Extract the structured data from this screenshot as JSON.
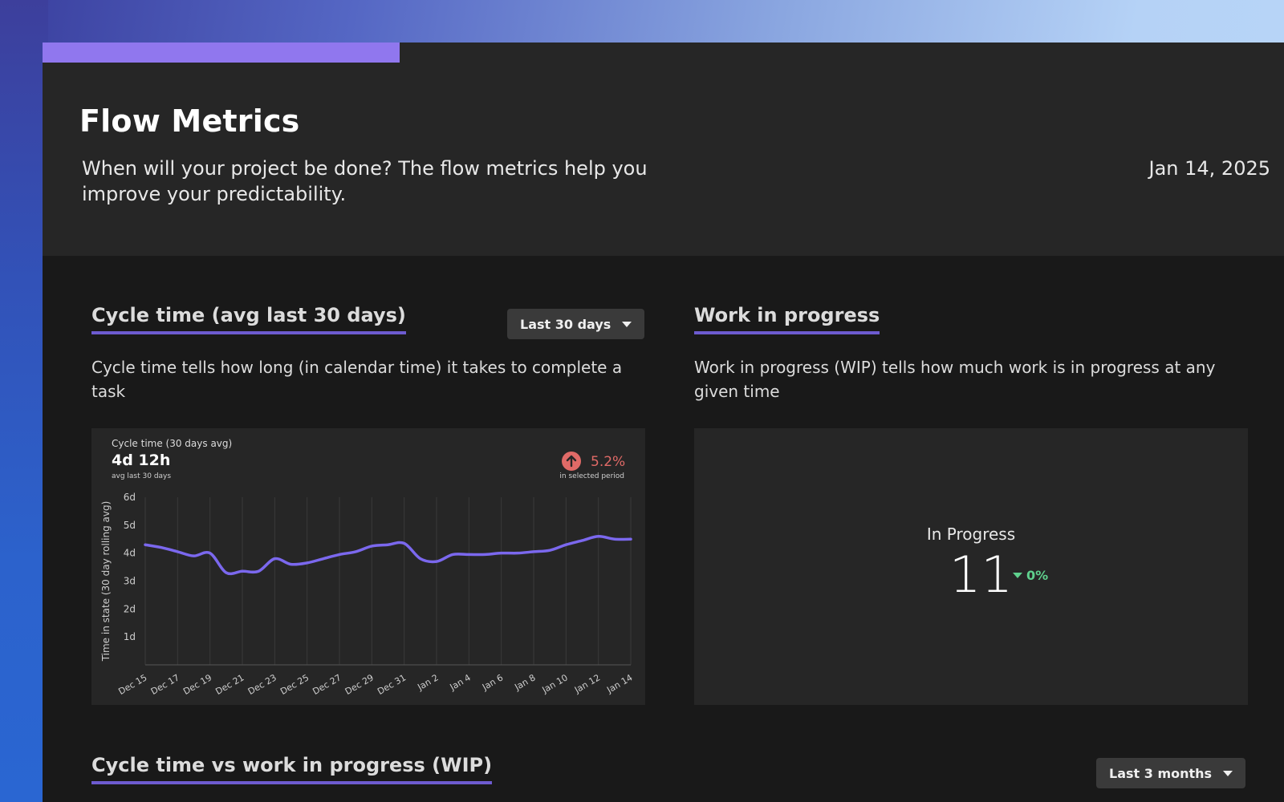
{
  "header": {
    "title": "Flow Metrics",
    "subtitle": "When will your project be done? The flow metrics help you improve your predictability.",
    "date": "Jan 14, 2025"
  },
  "cycle_time": {
    "title": "Cycle time (avg last 30 days)",
    "dropdown_label": "Last 30 days",
    "description": "Cycle time tells how long (in calendar time) it takes to complete a task",
    "card": {
      "label": "Cycle time (30 days avg)",
      "value": "4d 12h",
      "value_sub": "avg last 30 days",
      "change_pct": "5.2%",
      "change_sub": "in selected period",
      "change_icon": "arrow-up-icon",
      "change_color": "#e06a67"
    }
  },
  "wip": {
    "title": "Work in progress",
    "description": "Work in progress (WIP) tells how much work is in progress at any given time",
    "label": "In Progress",
    "value": "11",
    "change_pct": "0%",
    "change_icon": "triangle-down-icon",
    "change_color": "#5fd08d"
  },
  "cycle_vs_wip": {
    "title": "Cycle time vs work in progress (WIP)",
    "dropdown_label": "Last 3 months"
  },
  "colors": {
    "accent": "#9077ee",
    "underline": "#6d5bd0",
    "line": "#7b68ee"
  },
  "chart_data": {
    "type": "line",
    "ylabel": "Time in state (30 day rolling avg)",
    "ylim": [
      0,
      6
    ],
    "y_ticks": [
      "1d",
      "2d",
      "3d",
      "4d",
      "5d",
      "6d"
    ],
    "x_tick_labels": [
      "Dec 15",
      "Dec 17",
      "Dec 19",
      "Dec 21",
      "Dec 23",
      "Dec 25",
      "Dec 27",
      "Dec 29",
      "Dec 31",
      "Jan 2",
      "Jan 4",
      "Jan 6",
      "Jan 8",
      "Jan 10",
      "Jan 12",
      "Jan 14"
    ],
    "grid": true,
    "series": [
      {
        "x": [
          "Dec 15",
          "Dec 16",
          "Dec 17",
          "Dec 18",
          "Dec 19",
          "Dec 20",
          "Dec 21",
          "Dec 22",
          "Dec 23",
          "Dec 24",
          "Dec 25",
          "Dec 26",
          "Dec 27",
          "Dec 28",
          "Dec 29",
          "Dec 30",
          "Dec 31",
          "Jan 1",
          "Jan 2",
          "Jan 3",
          "Jan 4",
          "Jan 5",
          "Jan 6",
          "Jan 7",
          "Jan 8",
          "Jan 9",
          "Jan 10",
          "Jan 11",
          "Jan 12",
          "Jan 13",
          "Jan 14"
        ],
        "values": [
          4.3,
          4.2,
          4.05,
          3.9,
          4.0,
          3.3,
          3.35,
          3.35,
          3.8,
          3.6,
          3.65,
          3.8,
          3.95,
          4.05,
          4.25,
          4.3,
          4.35,
          3.8,
          3.7,
          3.95,
          3.95,
          3.95,
          4.0,
          4.0,
          4.05,
          4.1,
          4.3,
          4.45,
          4.6,
          4.5,
          4.5
        ]
      }
    ]
  }
}
